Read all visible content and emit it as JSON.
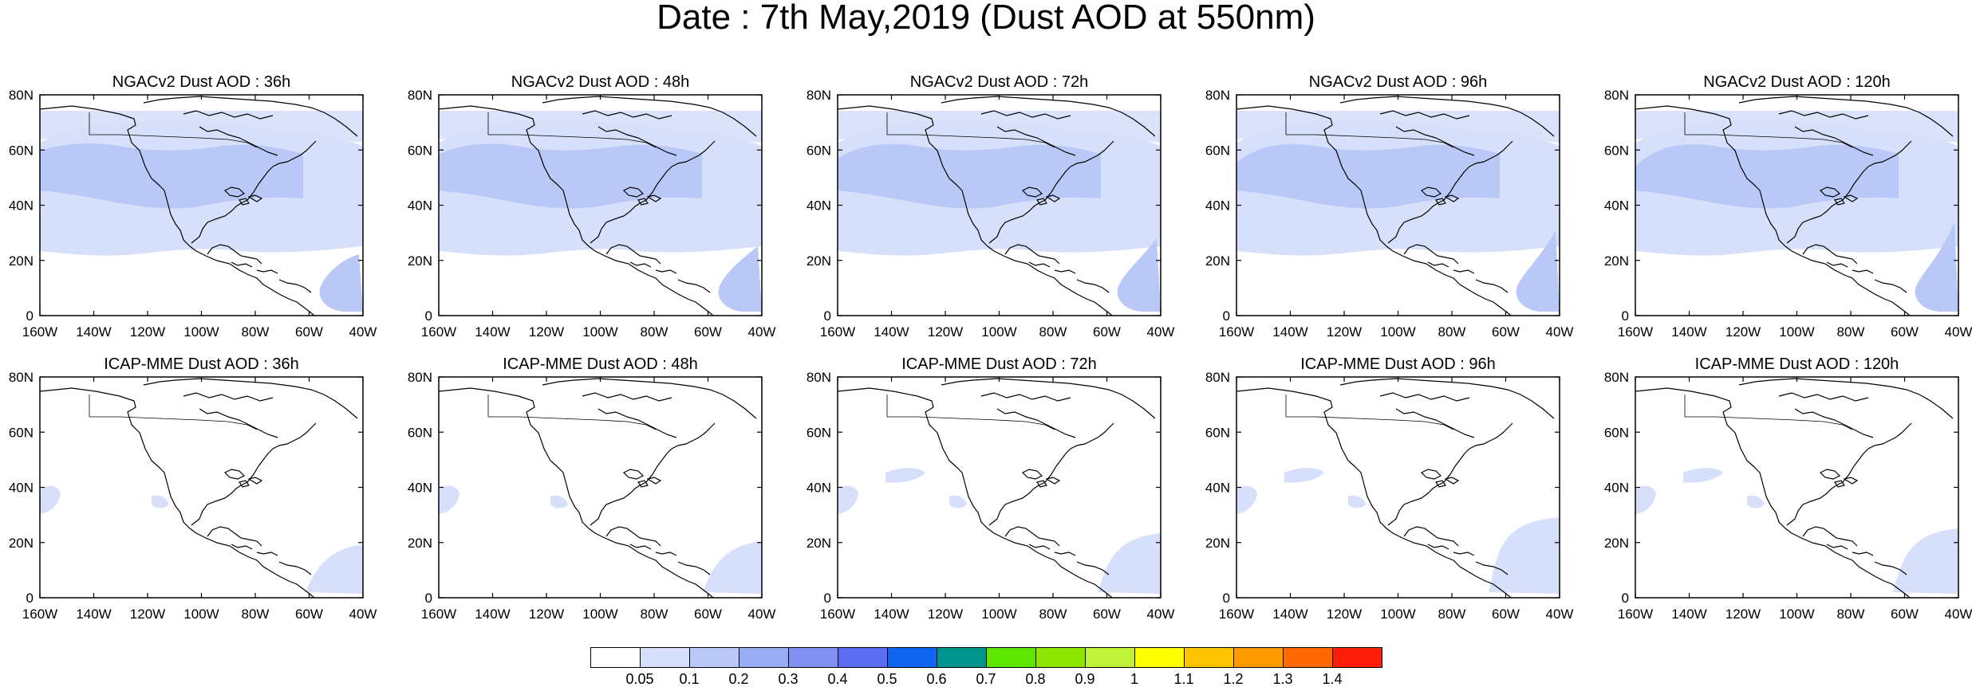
{
  "title": "Date : 7th May,2019 (Dust AOD at 550nm)",
  "panels": [
    {
      "title": "NGACv2 Dust AOD : 36h",
      "intensity": "moderate",
      "dust_plume_atlantic": "small"
    },
    {
      "title": "NGACv2 Dust AOD : 48h",
      "intensity": "moderate",
      "dust_plume_atlantic": "small"
    },
    {
      "title": "NGACv2 Dust AOD : 72h",
      "intensity": "moderate",
      "dust_plume_atlantic": "medium"
    },
    {
      "title": "NGACv2 Dust AOD : 96h",
      "intensity": "moderate",
      "dust_plume_atlantic": "medium"
    },
    {
      "title": "NGACv2 Dust AOD : 120h",
      "intensity": "moderate",
      "dust_plume_atlantic": "medium"
    },
    {
      "title": "ICAP-MME Dust AOD : 36h",
      "intensity": "low",
      "dust_plume_atlantic": "small"
    },
    {
      "title": "ICAP-MME Dust AOD : 48h",
      "intensity": "low",
      "dust_plume_atlantic": "small"
    },
    {
      "title": "ICAP-MME Dust AOD : 72h",
      "intensity": "low",
      "dust_plume_atlantic": "medium"
    },
    {
      "title": "ICAP-MME Dust AOD : 96h",
      "intensity": "low",
      "dust_plume_atlantic": "large"
    },
    {
      "title": "ICAP-MME Dust AOD : 120h",
      "intensity": "low",
      "dust_plume_atlantic": "medium"
    }
  ],
  "lat_ticks": [
    "80N",
    "60N",
    "40N",
    "20N",
    "0"
  ],
  "lon_ticks": [
    "160W",
    "140W",
    "120W",
    "100W",
    "80W",
    "60W",
    "40W"
  ],
  "colorbar": {
    "labels": [
      "0.05",
      "0.1",
      "0.2",
      "0.3",
      "0.4",
      "0.5",
      "0.6",
      "0.7",
      "0.8",
      "0.9",
      "1",
      "1.1",
      "1.2",
      "1.3",
      "1.4"
    ],
    "colors": [
      "#ffffff",
      "#d7e0fa",
      "#b9c8f7",
      "#99adf5",
      "#7f8ff2",
      "#5b6cf0",
      "#0f64f0",
      "#00948c",
      "#5ce600",
      "#8ee600",
      "#c0f23a",
      "#ffff00",
      "#ffc400",
      "#ff9a00",
      "#ff6a00",
      "#ff1e0a"
    ]
  }
}
